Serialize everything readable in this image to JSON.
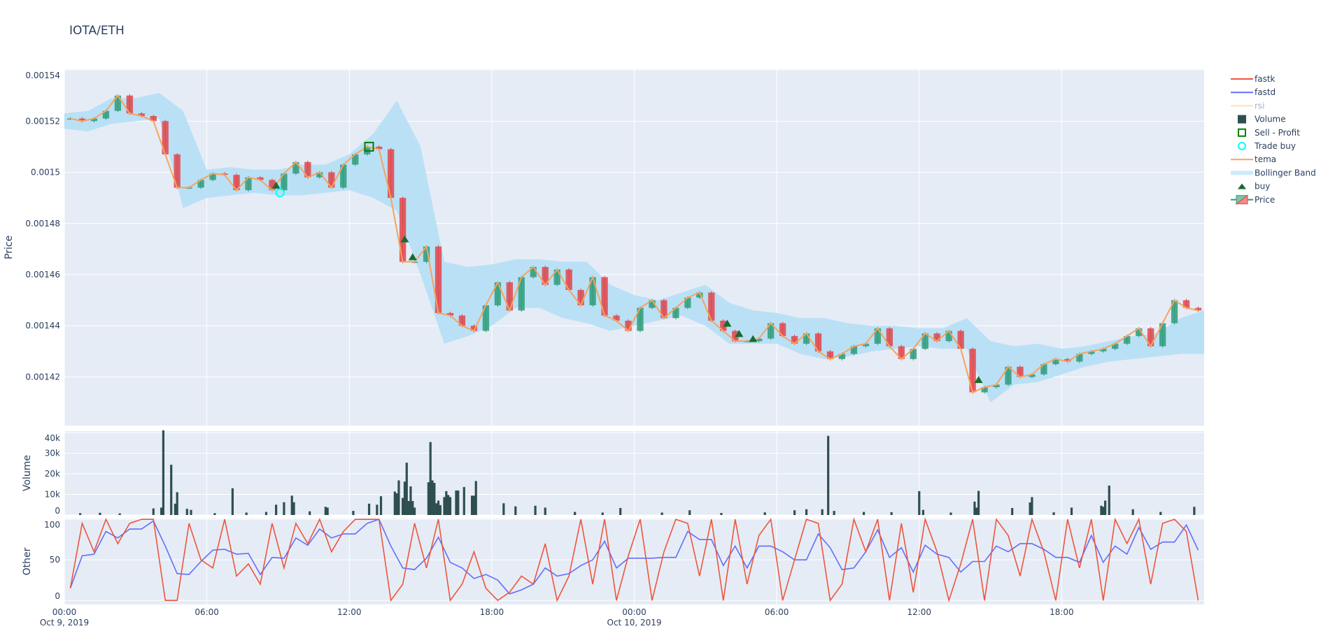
{
  "chart_data": {
    "type": "candlestick",
    "title": "IOTA/ETH",
    "x_range": [
      "2019-10-09 00:00",
      "2019-10-11 00:00"
    ],
    "x_ticks": [
      {
        "t": "2019-10-09 00:00",
        "label": "00:00",
        "sub": "Oct 9, 2019"
      },
      {
        "t": "2019-10-09 06:00",
        "label": "06:00",
        "sub": ""
      },
      {
        "t": "2019-10-09 12:00",
        "label": "12:00",
        "sub": ""
      },
      {
        "t": "2019-10-09 18:00",
        "label": "18:00",
        "sub": ""
      },
      {
        "t": "2019-10-10 00:00",
        "label": "00:00",
        "sub": "Oct 10, 2019"
      },
      {
        "t": "2019-10-10 06:00",
        "label": "06:00",
        "sub": ""
      },
      {
        "t": "2019-10-10 12:00",
        "label": "12:00",
        "sub": ""
      },
      {
        "t": "2019-10-10 18:00",
        "label": "18:00",
        "sub": ""
      }
    ],
    "grid": true,
    "legend_position": "right",
    "colors": {
      "background": "#e5ecf6",
      "increasing": "#2e9c7a",
      "decreasing": "#e0454a",
      "bollinger": "#b7dff5",
      "tema": "#f7a35c",
      "fastk": "#ef553b",
      "fastd": "#636efa",
      "rsi": "#fde4a8",
      "volume": "#2f4f4f",
      "sell_profit": "#008000",
      "trade_buy": "#00ffff",
      "buy": "#1a6b30"
    },
    "price_panel": {
      "ylabel": "Price",
      "ylim": [
        0.001401,
        0.0015403
      ],
      "y_ticks": [
        {
          "v": 0.00142,
          "label": "0.00142"
        },
        {
          "v": 0.00144,
          "label": "0.00144"
        },
        {
          "v": 0.00146,
          "label": "0.00146"
        },
        {
          "v": 0.00148,
          "label": "0.00148"
        },
        {
          "v": 0.0015,
          "label": "0.0015"
        },
        {
          "v": 0.00152,
          "label": "0.00152"
        },
        {
          "v": 0.00154,
          "label": "0.00154"
        }
      ],
      "candles": {
        "start": "2019-10-09 00:00",
        "interval_minutes": 30,
        "close": [
          0.001521,
          0.00152,
          0.001521,
          0.001524,
          0.00153,
          0.001523,
          0.001522,
          0.00152,
          0.001507,
          0.001494,
          0.001494,
          0.001497,
          0.0014995,
          0.001499,
          0.001493,
          0.001498,
          0.001497,
          0.001493,
          0.0014995,
          0.001504,
          0.001498,
          0.0015,
          0.001494,
          0.001503,
          0.001507,
          0.00151,
          0.001509,
          0.00149,
          0.001465,
          0.001465,
          0.001471,
          0.001445,
          0.001444,
          0.00144,
          0.001438,
          0.001448,
          0.001457,
          0.001446,
          0.001459,
          0.001463,
          0.001456,
          0.001462,
          0.001454,
          0.001448,
          0.001459,
          0.001444,
          0.001442,
          0.001438,
          0.001447,
          0.00145,
          0.001443,
          0.001447,
          0.001451,
          0.001453,
          0.001442,
          0.001438,
          0.001434,
          0.001434,
          0.001435,
          0.001441,
          0.001436,
          0.001433,
          0.001437,
          0.00143,
          0.001427,
          0.001429,
          0.001432,
          0.001433,
          0.001439,
          0.001432,
          0.001427,
          0.001431,
          0.001437,
          0.001434,
          0.001438,
          0.001431,
          0.001414,
          0.001416,
          0.001417,
          0.001424,
          0.00142,
          0.001421,
          0.001425,
          0.001427,
          0.001426,
          0.001429,
          0.00143,
          0.001431,
          0.001433,
          0.001436,
          0.001439,
          0.001432,
          0.001441,
          0.00145,
          0.001447,
          0.001446
        ]
      },
      "bollinger": {
        "start": "2019-10-09 00:00",
        "interval_minutes": 60,
        "upper": [
          0.001523,
          0.001524,
          0.001529,
          0.001529,
          0.001531,
          0.001524,
          0.001501,
          0.001502,
          0.001501,
          0.001501,
          0.001503,
          0.001503,
          0.001507,
          0.001515,
          0.001528,
          0.00151,
          0.001465,
          0.001463,
          0.001464,
          0.001466,
          0.001466,
          0.001465,
          0.001465,
          0.001456,
          0.001452,
          0.00145,
          0.001453,
          0.001456,
          0.001449,
          0.001446,
          0.001445,
          0.001443,
          0.001443,
          0.001441,
          0.00144,
          0.00144,
          0.001439,
          0.001439,
          0.001443,
          0.001434,
          0.001432,
          0.001433,
          0.001431,
          0.001432,
          0.001434,
          0.001436,
          0.001437,
          0.001443,
          0.001446
        ],
        "lower": [
          0.001517,
          0.001516,
          0.001519,
          0.00152,
          0.001521,
          0.001486,
          0.00149,
          0.001491,
          0.001492,
          0.001491,
          0.001491,
          0.001492,
          0.001493,
          0.00149,
          0.001485,
          0.00146,
          0.001433,
          0.001436,
          0.00144,
          0.001447,
          0.001447,
          0.001443,
          0.001441,
          0.001438,
          0.00144,
          0.001442,
          0.001444,
          0.00144,
          0.001433,
          0.001433,
          0.001433,
          0.001429,
          0.001427,
          0.001428,
          0.00143,
          0.001431,
          0.001432,
          0.001431,
          0.001431,
          0.00141,
          0.001417,
          0.001418,
          0.001421,
          0.001424,
          0.001426,
          0.001427,
          0.001428,
          0.001429,
          0.001429
        ]
      },
      "buy": [
        {
          "t": "2019-10-09 08:55",
          "v": 0.001495
        },
        {
          "t": "2019-10-09 14:20",
          "v": 0.001474
        },
        {
          "t": "2019-10-09 14:40",
          "v": 0.001467
        },
        {
          "t": "2019-10-10 03:55",
          "v": 0.001441
        },
        {
          "t": "2019-10-10 04:25",
          "v": 0.001437
        },
        {
          "t": "2019-10-10 05:00",
          "v": 0.001435
        },
        {
          "t": "2019-10-10 14:30",
          "v": 0.001419
        }
      ],
      "trade_buy": [
        {
          "t": "2019-10-09 09:05",
          "v": 0.001492
        }
      ],
      "sell_profit": [
        {
          "t": "2019-10-09 12:50",
          "v": 0.00151
        }
      ]
    },
    "volume_panel": {
      "ylabel": "Volume",
      "ylim": [
        0,
        40700
      ],
      "y_ticks": [
        {
          "v": 0,
          "label": "0"
        },
        {
          "v": 10000,
          "label": "10k"
        },
        {
          "v": 20000,
          "label": "20k"
        },
        {
          "v": 30000,
          "label": "30k"
        },
        {
          "v": 40000,
          "label": "40k"
        }
      ],
      "bars": [
        [
          "2019-10-09 00:40",
          900
        ],
        [
          "2019-10-09 01:30",
          1100
        ],
        [
          "2019-10-09 02:20",
          800
        ],
        [
          "2019-10-09 03:45",
          3200
        ],
        [
          "2019-10-09 04:05",
          3600
        ],
        [
          "2019-10-09 04:10",
          41100
        ],
        [
          "2019-10-09 04:30",
          24400
        ],
        [
          "2019-10-09 04:40",
          5500
        ],
        [
          "2019-10-09 04:45",
          11100
        ],
        [
          "2019-10-09 05:10",
          3000
        ],
        [
          "2019-10-09 05:20",
          2500
        ],
        [
          "2019-10-09 06:20",
          900
        ],
        [
          "2019-10-09 07:05",
          13000
        ],
        [
          "2019-10-09 07:40",
          1200
        ],
        [
          "2019-10-09 08:30",
          1500
        ],
        [
          "2019-10-09 08:55",
          5000
        ],
        [
          "2019-10-09 09:15",
          6200
        ],
        [
          "2019-10-09 09:35",
          9400
        ],
        [
          "2019-10-09 09:40",
          6200
        ],
        [
          "2019-10-09 10:20",
          1800
        ],
        [
          "2019-10-09 11:00",
          4000
        ],
        [
          "2019-10-09 11:05",
          3600
        ],
        [
          "2019-10-09 12:10",
          2000
        ],
        [
          "2019-10-09 12:50",
          5500
        ],
        [
          "2019-10-09 13:10",
          5000
        ],
        [
          "2019-10-09 13:20",
          9100
        ],
        [
          "2019-10-09 13:55",
          11400
        ],
        [
          "2019-10-09 14:00",
          10500
        ],
        [
          "2019-10-09 14:05",
          16800
        ],
        [
          "2019-10-09 14:15",
          8300
        ],
        [
          "2019-10-09 14:20",
          16200
        ],
        [
          "2019-10-09 14:25",
          25400
        ],
        [
          "2019-10-09 14:30",
          6800
        ],
        [
          "2019-10-09 14:35",
          13900
        ],
        [
          "2019-10-09 14:40",
          6800
        ],
        [
          "2019-10-09 14:45",
          3600
        ],
        [
          "2019-10-09 15:20",
          15900
        ],
        [
          "2019-10-09 15:25",
          35400
        ],
        [
          "2019-10-09 15:30",
          16800
        ],
        [
          "2019-10-09 15:35",
          15600
        ],
        [
          "2019-10-09 15:40",
          5700
        ],
        [
          "2019-10-09 15:45",
          7000
        ],
        [
          "2019-10-09 15:50",
          4800
        ],
        [
          "2019-10-09 16:00",
          8700
        ],
        [
          "2019-10-09 16:05",
          11600
        ],
        [
          "2019-10-09 16:10",
          9700
        ],
        [
          "2019-10-09 16:15",
          8700
        ],
        [
          "2019-10-09 16:30",
          11900
        ],
        [
          "2019-10-09 16:35",
          11900
        ],
        [
          "2019-10-09 16:50",
          13600
        ],
        [
          "2019-10-09 17:10",
          9400
        ],
        [
          "2019-10-09 17:15",
          9400
        ],
        [
          "2019-10-09 17:20",
          16500
        ],
        [
          "2019-10-09 18:30",
          5700
        ],
        [
          "2019-10-09 19:00",
          4200
        ],
        [
          "2019-10-09 19:50",
          4500
        ],
        [
          "2019-10-09 20:15",
          3600
        ],
        [
          "2019-10-09 21:30",
          1500
        ],
        [
          "2019-10-09 22:40",
          1200
        ],
        [
          "2019-10-09 23:25",
          3400
        ],
        [
          "2019-10-10 01:10",
          1200
        ],
        [
          "2019-10-10 02:20",
          2300
        ],
        [
          "2019-10-10 03:40",
          1000
        ],
        [
          "2019-10-10 05:30",
          1300
        ],
        [
          "2019-10-10 06:45",
          2300
        ],
        [
          "2019-10-10 07:15",
          2800
        ],
        [
          "2019-10-10 07:55",
          2800
        ],
        [
          "2019-10-10 08:10",
          38400
        ],
        [
          "2019-10-10 08:25",
          2000
        ],
        [
          "2019-10-10 09:40",
          1500
        ],
        [
          "2019-10-10 10:50",
          1400
        ],
        [
          "2019-10-10 12:00",
          11600
        ],
        [
          "2019-10-10 12:10",
          2500
        ],
        [
          "2019-10-10 13:20",
          1200
        ],
        [
          "2019-10-10 14:20",
          6500
        ],
        [
          "2019-10-10 14:25",
          3600
        ],
        [
          "2019-10-10 14:30",
          11700
        ],
        [
          "2019-10-10 15:55",
          3400
        ],
        [
          "2019-10-10 16:40",
          6100
        ],
        [
          "2019-10-10 16:45",
          8700
        ],
        [
          "2019-10-10 17:40",
          1300
        ],
        [
          "2019-10-10 18:25",
          3600
        ],
        [
          "2019-10-10 19:40",
          4500
        ],
        [
          "2019-10-10 19:45",
          4000
        ],
        [
          "2019-10-10 19:50",
          7000
        ],
        [
          "2019-10-10 20:00",
          14300
        ],
        [
          "2019-10-10 21:00",
          2800
        ],
        [
          "2019-10-10 22:10",
          1500
        ],
        [
          "2019-10-10 23:35",
          4000
        ]
      ]
    },
    "other_panel": {
      "ylabel": "Other",
      "ylim": [
        -5,
        101
      ],
      "y_ticks": [
        {
          "v": 0,
          "label": "0"
        },
        {
          "v": 50,
          "label": "50"
        },
        {
          "v": 100,
          "label": "100"
        }
      ],
      "start": "2019-10-09 00:00",
      "interval_minutes": 30,
      "fastk": [
        15,
        95,
        60,
        100,
        70,
        95,
        100,
        100,
        0,
        0,
        95,
        50,
        40,
        100,
        30,
        45,
        20,
        95,
        40,
        95,
        70,
        100,
        60,
        85,
        100,
        100,
        100,
        0,
        20,
        95,
        40,
        100,
        0,
        20,
        60,
        15,
        0,
        10,
        30,
        20,
        70,
        0,
        30,
        100,
        20,
        100,
        0,
        55,
        100,
        0,
        60,
        100,
        95,
        30,
        100,
        0,
        100,
        20,
        80,
        100,
        0,
        50,
        100,
        95,
        0,
        20,
        100,
        60,
        100,
        0,
        95,
        10,
        100,
        60,
        0,
        45,
        100,
        0,
        100,
        80,
        30,
        100,
        60,
        0,
        100,
        40,
        100,
        0,
        100,
        70,
        100,
        20,
        95,
        100,
        85,
        0
      ],
      "fastd": [
        15,
        55,
        57,
        85,
        77,
        88,
        88,
        98,
        67,
        33,
        32,
        48,
        62,
        63,
        57,
        58,
        32,
        53,
        52,
        77,
        68,
        88,
        77,
        82,
        82,
        95,
        100,
        67,
        40,
        38,
        52,
        78,
        47,
        40,
        27,
        32,
        25,
        8,
        13,
        20,
        40,
        30,
        33,
        43,
        50,
        73,
        40,
        52,
        52,
        52,
        53,
        53,
        85,
        75,
        75,
        43,
        67,
        40,
        67,
        67,
        60,
        50,
        50,
        82,
        65,
        38,
        40,
        60,
        87,
        53,
        65,
        35,
        68,
        57,
        53,
        35,
        48,
        48,
        67,
        60,
        70,
        70,
        63,
        53,
        53,
        47,
        80,
        47,
        67,
        57,
        90,
        63,
        72,
        72,
        93,
        62
      ]
    },
    "legend": [
      {
        "name": "fastk",
        "icon": "line",
        "color": "#ef553b",
        "hidden": false
      },
      {
        "name": "fastd",
        "icon": "line",
        "color": "#636efa",
        "hidden": false
      },
      {
        "name": "rsi",
        "icon": "line",
        "color": "#fde4a8",
        "hidden": true
      },
      {
        "name": "Volume",
        "icon": "square-filled",
        "color": "#2f4f4f",
        "hidden": false
      },
      {
        "name": "Sell - Profit",
        "icon": "square-open",
        "color": "#008000",
        "hidden": false
      },
      {
        "name": "Trade buy",
        "icon": "circle-open",
        "color": "#00ffff",
        "hidden": false
      },
      {
        "name": "tema",
        "icon": "line",
        "color": "#f7a35c",
        "hidden": false
      },
      {
        "name": "Bollinger Band",
        "icon": "band",
        "color": "#cdeafb",
        "hidden": false
      },
      {
        "name": "buy",
        "icon": "triangle-up",
        "color": "#1a6b30",
        "hidden": false
      },
      {
        "name": "Price",
        "icon": "candlestick",
        "color": "#2e9c7a",
        "hidden": false
      }
    ]
  }
}
